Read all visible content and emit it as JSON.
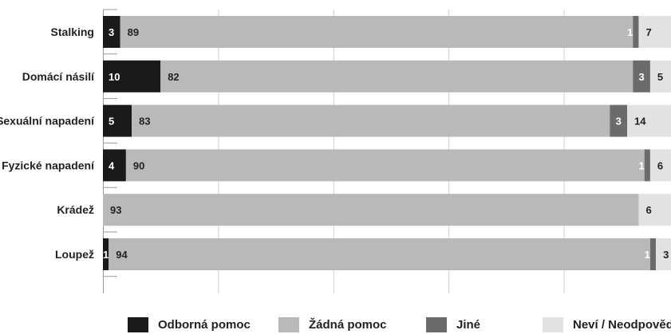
{
  "chart_data": {
    "type": "bar",
    "orientation": "horizontal",
    "stacked": true,
    "categories": [
      "Stalking",
      "Domácí násilí",
      "Sexuální napadení",
      "Fyzické napadení",
      "Krádež",
      "Loupež"
    ],
    "series": [
      {
        "name": "Odborná pomoc",
        "color": "#1a1a1a",
        "values": [
          3,
          10,
          5,
          4,
          0,
          1
        ]
      },
      {
        "name": "Žádná pomoc",
        "color": "#b9b9b9",
        "values": [
          89,
          82,
          83,
          90,
          93,
          94
        ]
      },
      {
        "name": "Jiné",
        "color": "#6b6b6b",
        "values": [
          1,
          3,
          3,
          1,
          0,
          1
        ]
      },
      {
        "name": "Neví / Neodpověděl",
        "color": "#e2e2e2",
        "values": [
          7,
          5,
          14,
          6,
          6,
          3
        ]
      }
    ],
    "xlim": [
      0,
      100
    ],
    "grid": true,
    "legend": "bottom"
  }
}
